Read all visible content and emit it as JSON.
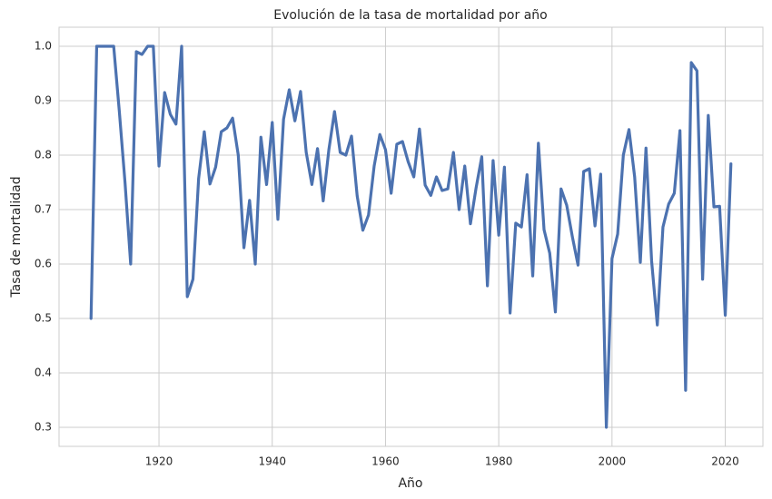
{
  "chart_data": {
    "type": "line",
    "title": "Evolución de la tasa de mortalidad por año",
    "x_label": "Año",
    "y_label": "Tasa de mortalidad",
    "x": [
      1908,
      1909,
      1910,
      1911,
      1912,
      1913,
      1914,
      1915,
      1916,
      1917,
      1918,
      1919,
      1920,
      1921,
      1922,
      1923,
      1924,
      1925,
      1926,
      1927,
      1928,
      1929,
      1930,
      1931,
      1932,
      1933,
      1934,
      1935,
      1936,
      1937,
      1938,
      1939,
      1940,
      1941,
      1942,
      1943,
      1944,
      1945,
      1946,
      1947,
      1948,
      1949,
      1950,
      1951,
      1952,
      1953,
      1954,
      1955,
      1956,
      1957,
      1958,
      1959,
      1960,
      1961,
      1962,
      1963,
      1964,
      1965,
      1966,
      1967,
      1968,
      1969,
      1970,
      1971,
      1972,
      1973,
      1974,
      1975,
      1976,
      1977,
      1978,
      1979,
      1980,
      1981,
      1982,
      1983,
      1984,
      1985,
      1986,
      1987,
      1988,
      1989,
      1990,
      1991,
      1992,
      1993,
      1994,
      1995,
      1996,
      1997,
      1998,
      1999,
      2000,
      2001,
      2002,
      2003,
      2004,
      2005,
      2006,
      2007,
      2008,
      2009,
      2010,
      2011,
      2012,
      2013,
      2014,
      2015,
      2016,
      2017,
      2018,
      2019,
      2020,
      2021
    ],
    "values": [
      0.5,
      1.0,
      1.0,
      1.0,
      1.0,
      0.88,
      0.75,
      0.6,
      0.99,
      0.985,
      1.0,
      1.0,
      0.78,
      0.915,
      0.875,
      0.857,
      1.0,
      0.54,
      0.572,
      0.757,
      0.843,
      0.747,
      0.778,
      0.843,
      0.85,
      0.868,
      0.8,
      0.63,
      0.717,
      0.6,
      0.833,
      0.746,
      0.86,
      0.682,
      0.866,
      0.92,
      0.863,
      0.917,
      0.805,
      0.746,
      0.812,
      0.716,
      0.81,
      0.88,
      0.805,
      0.8,
      0.835,
      0.725,
      0.662,
      0.69,
      0.78,
      0.838,
      0.81,
      0.73,
      0.82,
      0.825,
      0.788,
      0.76,
      0.848,
      0.745,
      0.726,
      0.76,
      0.735,
      0.738,
      0.805,
      0.7,
      0.78,
      0.674,
      0.74,
      0.797,
      0.56,
      0.79,
      0.653,
      0.778,
      0.51,
      0.675,
      0.668,
      0.764,
      0.578,
      0.822,
      0.663,
      0.62,
      0.512,
      0.738,
      0.708,
      0.65,
      0.598,
      0.77,
      0.775,
      0.67,
      0.765,
      0.3,
      0.61,
      0.655,
      0.8,
      0.847,
      0.76,
      0.603,
      0.813,
      0.605,
      0.488,
      0.668,
      0.71,
      0.73,
      0.845,
      0.368,
      0.97,
      0.955,
      0.572,
      0.873,
      0.705,
      0.706,
      0.506,
      0.784
    ],
    "color": "#4c72b0",
    "xlim": [
      1902.35,
      2026.65
    ],
    "xticks": [
      1920,
      1940,
      1960,
      1980,
      2000,
      2020
    ],
    "ylim": [
      0.265,
      1.035
    ],
    "yticks": [
      0.3,
      0.4,
      0.5,
      0.6,
      0.7,
      0.8,
      0.9,
      {
        "value": 1,
        "label": "1.0"
      }
    ],
    "grid": true
  }
}
